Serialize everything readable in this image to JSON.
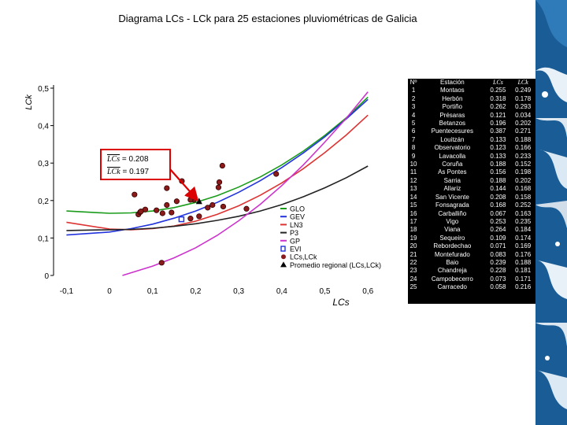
{
  "chart_data": {
    "type": "scatter",
    "title": "Diagrama LCs - LCk para 25 estaciones pluviométricas de Galicia",
    "xlabel": "LCs",
    "ylabel": "LCk",
    "xlim": [
      -0.13,
      0.66
    ],
    "ylim": [
      0,
      0.5
    ],
    "xticks": [
      "-0,1",
      "0",
      "0,1",
      "0,2",
      "0,3",
      "0,4",
      "0,5",
      "0,6"
    ],
    "xtick_values": [
      -0.1,
      0,
      0.1,
      0.2,
      0.3,
      0.4,
      0.5,
      0.6
    ],
    "yticks": [
      "0",
      "0,1",
      "0,2",
      "0,3",
      "0,4",
      "0,5"
    ],
    "ytick_values": [
      0,
      0.1,
      0.2,
      0.3,
      0.4,
      0.5
    ],
    "grid": false,
    "legend_placement": "bottom-right",
    "colors": {
      "GLO": "#1a9c1a",
      "GEV": "#2233dd",
      "LN3": "#dd3333",
      "P3": "#222222",
      "GP": "#cc33cc",
      "EVI": "#2233dd",
      "points": "#8b1a1a",
      "arrow": "#dd0000"
    },
    "series": [
      {
        "name": "GLO",
        "kind": "line",
        "x": [
          -0.1,
          0.0,
          0.05,
          0.1,
          0.15,
          0.2,
          0.25,
          0.3,
          0.35,
          0.4,
          0.45,
          0.5,
          0.55,
          0.6
        ],
        "y": [
          0.172,
          0.166,
          0.167,
          0.172,
          0.181,
          0.195,
          0.213,
          0.236,
          0.263,
          0.295,
          0.332,
          0.374,
          0.421,
          0.476
        ]
      },
      {
        "name": "GEV",
        "kind": "line",
        "x": [
          -0.1,
          0.0,
          0.05,
          0.1,
          0.15,
          0.2,
          0.25,
          0.3,
          0.35,
          0.4,
          0.45,
          0.5,
          0.55,
          0.6
        ],
        "y": [
          0.108,
          0.116,
          0.125,
          0.137,
          0.153,
          0.172,
          0.195,
          0.222,
          0.253,
          0.288,
          0.327,
          0.37,
          0.418,
          0.47
        ]
      },
      {
        "name": "LN3",
        "kind": "line",
        "x": [
          -0.1,
          0.0,
          0.05,
          0.1,
          0.15,
          0.2,
          0.25,
          0.3,
          0.35,
          0.4,
          0.45,
          0.5,
          0.55,
          0.6
        ],
        "y": [
          0.142,
          0.124,
          0.122,
          0.125,
          0.132,
          0.145,
          0.163,
          0.186,
          0.214,
          0.247,
          0.285,
          0.328,
          0.375,
          0.428
        ]
      },
      {
        "name": "P3",
        "kind": "line",
        "x": [
          -0.1,
          0.0,
          0.05,
          0.1,
          0.15,
          0.2,
          0.25,
          0.3,
          0.35,
          0.4,
          0.45,
          0.5,
          0.55,
          0.6
        ],
        "y": [
          0.12,
          0.122,
          0.123,
          0.126,
          0.131,
          0.138,
          0.147,
          0.158,
          0.172,
          0.189,
          0.21,
          0.234,
          0.261,
          0.292
        ]
      },
      {
        "name": "GP",
        "kind": "line",
        "x": [
          0.03,
          0.1,
          0.15,
          0.2,
          0.25,
          0.3,
          0.35,
          0.4,
          0.45,
          0.5,
          0.55,
          0.6
        ],
        "y": [
          0.0,
          0.025,
          0.047,
          0.074,
          0.107,
          0.146,
          0.19,
          0.24,
          0.295,
          0.356,
          0.42,
          0.49
        ]
      },
      {
        "name": "EVI",
        "kind": "point",
        "x": [
          0.167
        ],
        "y": [
          0.15
        ]
      },
      {
        "name": "LCs,LCk",
        "kind": "points",
        "x": [
          0.255,
          0.318,
          0.262,
          0.121,
          0.196,
          0.387,
          0.133,
          0.123,
          0.133,
          0.188,
          0.156,
          0.188,
          0.144,
          0.208,
          0.168,
          0.067,
          0.253,
          0.264,
          0.109,
          0.071,
          0.083,
          0.239,
          0.228,
          0.073,
          0.058
        ],
        "y": [
          0.249,
          0.178,
          0.293,
          0.034,
          0.202,
          0.271,
          0.188,
          0.166,
          0.233,
          0.152,
          0.198,
          0.202,
          0.168,
          0.158,
          0.252,
          0.163,
          0.235,
          0.184,
          0.174,
          0.169,
          0.176,
          0.188,
          0.181,
          0.171,
          0.216
        ]
      },
      {
        "name": "Promedio regional (LCs,LCk)",
        "kind": "point",
        "x": [
          0.208
        ],
        "y": [
          0.197
        ]
      }
    ],
    "annotation": {
      "lcs_line": "LCs = 0.208",
      "lck_line": "LCk = 0.197",
      "lcs_var": "LCs",
      "lck_var": "LCk",
      "lcs_val": " = 0.208",
      "lck_val": " = 0.197"
    }
  },
  "table": {
    "headers": [
      "Nº",
      "Estación",
      "LCs",
      "LCk"
    ],
    "rows": [
      [
        "1",
        "Montaos",
        "0.255",
        "0.249"
      ],
      [
        "2",
        "Herbón",
        "0.318",
        "0.178"
      ],
      [
        "3",
        "Portiño",
        "0.262",
        "0.293"
      ],
      [
        "4",
        "Présaras",
        "0.121",
        "0.034"
      ],
      [
        "5",
        "Betanzos",
        "0.196",
        "0.202"
      ],
      [
        "6",
        "Puentecesures",
        "0.387",
        "0.271"
      ],
      [
        "7",
        "Louitzán",
        "0.133",
        "0.188"
      ],
      [
        "8",
        "Observatorio",
        "0.123",
        "0.166"
      ],
      [
        "9",
        "Lavacolla",
        "0.133",
        "0.233"
      ],
      [
        "10",
        "Coruña",
        "0.188",
        "0.152"
      ],
      [
        "11",
        "As Pontes",
        "0.156",
        "0.198"
      ],
      [
        "12",
        "Sarria",
        "0.188",
        "0.202"
      ],
      [
        "13",
        "Allariz",
        "0.144",
        "0.168"
      ],
      [
        "14",
        "San Vicente",
        "0.208",
        "0.158"
      ],
      [
        "15",
        "Fonsagrada",
        "0.168",
        "0.252"
      ],
      [
        "16",
        "Carballiño",
        "0.067",
        "0.163"
      ],
      [
        "17",
        "Vigo",
        "0.253",
        "0.235"
      ],
      [
        "18",
        "Viana",
        "0.264",
        "0.184"
      ],
      [
        "19",
        "Sequeiro",
        "0.109",
        "0.174"
      ],
      [
        "20",
        "Rebordechao",
        "0.071",
        "0.169"
      ],
      [
        "21",
        "Montefurado",
        "0.083",
        "0.176"
      ],
      [
        "22",
        "Baio",
        "0.239",
        "0.188"
      ],
      [
        "23",
        "Chandreja",
        "0.228",
        "0.181"
      ],
      [
        "24",
        "Campobecerro",
        "0.073",
        "0.171"
      ],
      [
        "25",
        "Carracedo",
        "0.058",
        "0.216"
      ]
    ]
  }
}
